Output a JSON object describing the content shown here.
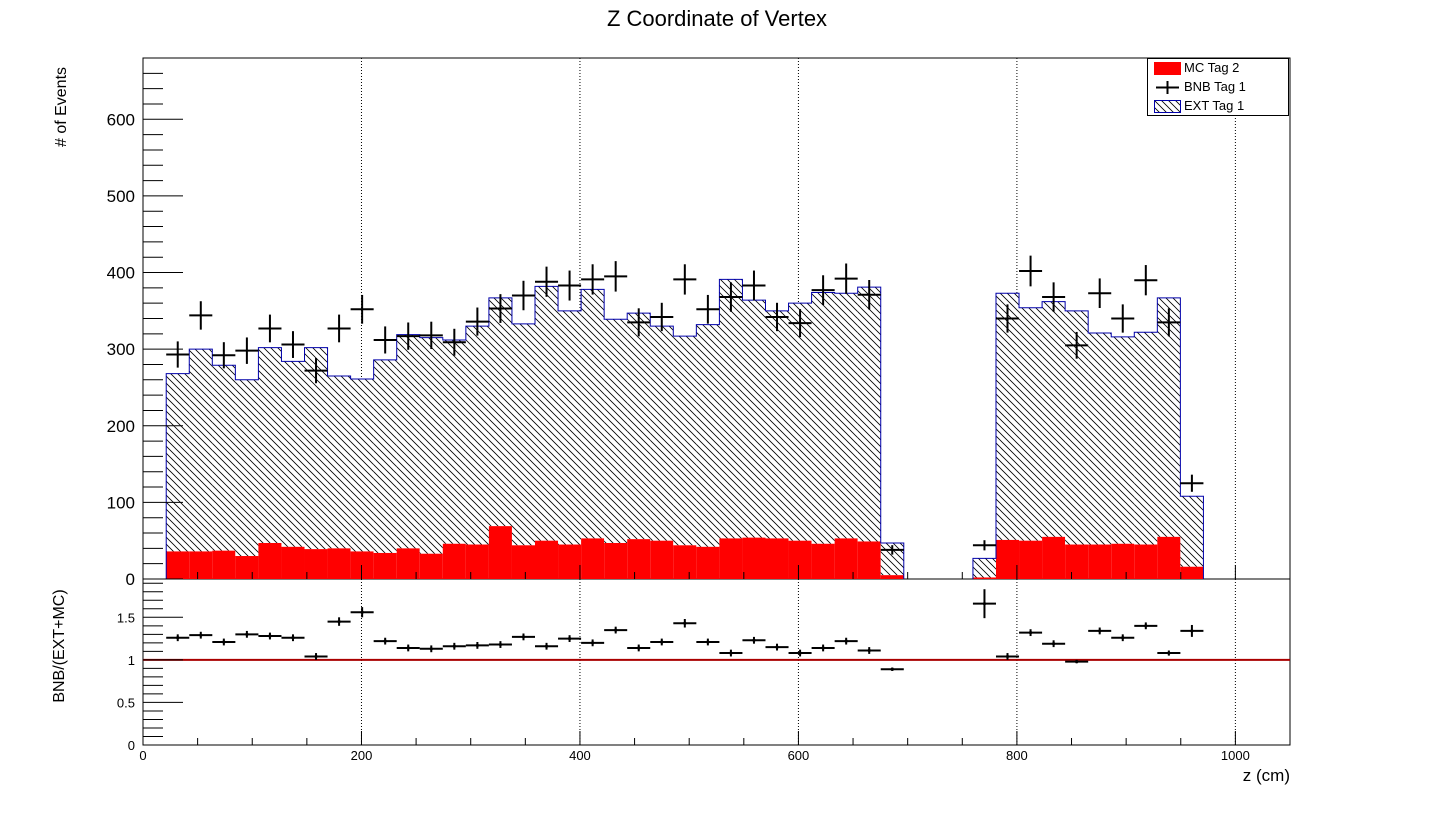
{
  "chart_data": {
    "type": "bar",
    "title": "Z Coordinate of Vertex",
    "xlabel": "z (cm)",
    "xlim": [
      0,
      1050
    ],
    "xticks": [
      "0",
      "200",
      "400",
      "600",
      "800",
      "1000"
    ],
    "bin_width": 21.1,
    "legend": {
      "position": "top-right",
      "entries": [
        {
          "name": "MC Tag 2",
          "style": "filled",
          "color": "#ff0000"
        },
        {
          "name": "BNB Tag 1",
          "style": "points-with-errors",
          "color": "#000000"
        },
        {
          "name": "EXT Tag 1",
          "style": "hatched",
          "color": "#0000aa"
        }
      ]
    },
    "top_panel": {
      "ylabel": "# of Events",
      "ylim": [
        0,
        680
      ],
      "yticks": [
        "0",
        "100",
        "200",
        "300",
        "400",
        "500",
        "600"
      ],
      "bin_centers": [
        31.8,
        52.9,
        74.0,
        95.1,
        116.2,
        137.3,
        158.4,
        179.5,
        200.6,
        221.7,
        242.8,
        263.9,
        285.0,
        306.1,
        327.2,
        348.3,
        369.4,
        390.5,
        411.6,
        432.7,
        453.8,
        474.9,
        496.0,
        517.1,
        538.2,
        559.3,
        580.4,
        601.5,
        622.6,
        643.7,
        664.8,
        685.9,
        707.0,
        728.1,
        749.2,
        770.3,
        791.4,
        812.5,
        833.6,
        854.7,
        875.8,
        896.9,
        918.0,
        939.1,
        960.2
      ],
      "series": [
        {
          "name": "MC Tag 2",
          "type": "bar",
          "values": [
            36,
            36,
            37,
            30,
            47,
            42,
            39,
            40,
            36,
            34,
            40,
            33,
            46,
            45,
            69,
            44,
            50,
            45,
            53,
            47,
            52,
            50,
            44,
            42,
            53,
            54,
            53,
            50,
            46,
            53,
            49,
            5,
            0,
            0,
            0,
            2,
            51,
            50,
            55,
            45,
            45,
            46,
            45,
            55,
            16
          ]
        },
        {
          "name": "EXT Tag 1",
          "type": "bar",
          "stacked_on": "MC Tag 2",
          "values": [
            232,
            264,
            242,
            230,
            255,
            242,
            263,
            225,
            225,
            252,
            279,
            282,
            266,
            285,
            298,
            289,
            332,
            305,
            325,
            292,
            295,
            280,
            273,
            290,
            338,
            310,
            297,
            310,
            328,
            320,
            332,
            42,
            0,
            0,
            0,
            25,
            322,
            304,
            307,
            305,
            276,
            270,
            277,
            312,
            92
          ]
        },
        {
          "name": "BNB Tag 1",
          "type": "scatter-with-errors",
          "x": [
            31.8,
            52.9,
            74.0,
            95.1,
            116.2,
            137.3,
            158.4,
            179.5,
            200.6,
            221.7,
            242.8,
            263.9,
            285.0,
            306.1,
            327.2,
            348.3,
            369.4,
            390.5,
            411.6,
            432.7,
            453.8,
            474.9,
            496.0,
            517.1,
            538.2,
            559.3,
            580.4,
            601.5,
            622.6,
            643.7,
            664.8,
            685.9,
            770.3,
            791.4,
            812.5,
            833.6,
            854.7,
            875.8,
            896.9,
            918.0,
            939.1,
            960.2
          ],
          "values": [
            293,
            344,
            292,
            298,
            327,
            306,
            272,
            327,
            352,
            312,
            317,
            318,
            309,
            336,
            353,
            370,
            388,
            383,
            391,
            395,
            335,
            342,
            391,
            352,
            368,
            383,
            342,
            334,
            377,
            392,
            371,
            38,
            44,
            340,
            402,
            368,
            305,
            373,
            340,
            390,
            335,
            125
          ]
        }
      ]
    },
    "bottom_panel": {
      "ylabel": "BNB/(EXT+MC)",
      "ylim": [
        0,
        1.95
      ],
      "yticks": [
        "0",
        "0.5",
        "1",
        "1.5"
      ],
      "reference_line": 1,
      "series": [
        {
          "name": "ratio",
          "type": "scatter-with-errors",
          "x": [
            31.8,
            52.9,
            74.0,
            95.1,
            116.2,
            137.3,
            158.4,
            179.5,
            200.6,
            221.7,
            242.8,
            263.9,
            285.0,
            306.1,
            327.2,
            348.3,
            369.4,
            390.5,
            411.6,
            432.7,
            453.8,
            474.9,
            496.0,
            517.1,
            538.2,
            559.3,
            580.4,
            601.5,
            622.6,
            643.7,
            664.8,
            685.9,
            770.3,
            791.4,
            812.5,
            833.6,
            854.7,
            875.8,
            896.9,
            918.0,
            939.1,
            960.2
          ],
          "values": [
            1.26,
            1.29,
            1.21,
            1.3,
            1.28,
            1.26,
            1.04,
            1.45,
            1.56,
            1.22,
            1.14,
            1.13,
            1.16,
            1.17,
            1.18,
            1.27,
            1.16,
            1.25,
            1.2,
            1.35,
            1.14,
            1.21,
            1.43,
            1.21,
            1.08,
            1.23,
            1.15,
            1.08,
            1.14,
            1.22,
            1.11,
            0.89,
            1.66,
            1.04,
            1.32,
            1.19,
            0.98,
            1.34,
            1.26,
            1.4,
            1.08,
            1.34
          ],
          "errors": [
            0.04,
            0.04,
            0.04,
            0.04,
            0.04,
            0.04,
            0.04,
            0.05,
            0.06,
            0.04,
            0.04,
            0.04,
            0.04,
            0.04,
            0.04,
            0.04,
            0.04,
            0.04,
            0.04,
            0.04,
            0.04,
            0.04,
            0.05,
            0.04,
            0.04,
            0.04,
            0.04,
            0.04,
            0.04,
            0.04,
            0.04,
            0.02,
            0.17,
            0.04,
            0.04,
            0.04,
            0.02,
            0.04,
            0.04,
            0.04,
            0.03,
            0.07
          ]
        }
      ]
    }
  }
}
